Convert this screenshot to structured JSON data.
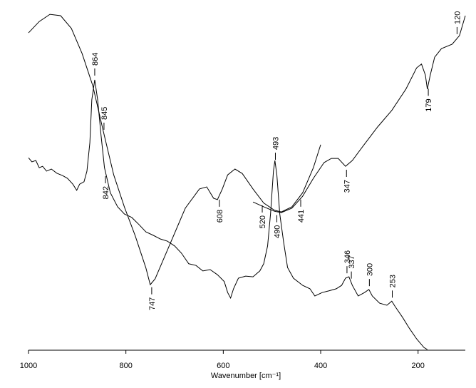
{
  "chart_data": {
    "type": "line",
    "x_label": "Wavenumber [cm⁻¹]",
    "xlim": [
      1000,
      103
    ],
    "xticks": [
      1000,
      800,
      600,
      400,
      200
    ],
    "ylim": [
      0,
      100
    ],
    "series": [
      {
        "color": "#000000",
        "x": [
          1000,
          978,
          956,
          934,
          912,
          890,
          868,
          846,
          825,
          803,
          781,
          759,
          750,
          740,
          715,
          678,
          649,
          634,
          620,
          612,
          602,
          591,
          576,
          561,
          539,
          517,
          495,
          481,
          459,
          437,
          415,
          400
        ],
        "values": [
          92.5,
          95.8,
          97.9,
          97.5,
          93.8,
          86.5,
          77.1,
          63.6,
          51.1,
          41.7,
          33.4,
          24.0,
          19.1,
          20.8,
          29.1,
          41.4,
          47.0,
          47.6,
          44.3,
          43.9,
          47.0,
          51.1,
          52.8,
          51.5,
          47.0,
          42.9,
          40.8,
          40.3,
          41.8,
          45.9,
          53.2,
          59.9
        ]
      },
      {
        "color": "#000000",
        "x": [
          1000,
          993,
          985,
          978,
          971,
          963,
          953,
          942,
          930,
          920,
          909,
          901,
          895,
          886,
          880,
          874,
          870,
          864,
          858,
          851,
          844,
          832,
          817,
          803,
          788,
          773,
          759,
          744,
          729,
          715,
          700,
          686,
          671,
          656,
          642,
          627,
          612,
          598,
          591,
          585,
          579,
          569,
          554,
          539,
          525,
          517,
          509,
          503,
          497,
          494,
          490,
          484,
          476,
          468,
          456,
          437,
          422,
          412,
          397,
          383,
          368,
          357,
          349,
          342,
          335,
          323,
          310,
          301,
          294,
          279,
          264,
          254,
          247,
          232,
          218,
          203,
          188,
          181
        ],
        "values": [
          56.1,
          54.9,
          55.3,
          53.2,
          53.6,
          52.2,
          52.8,
          51.6,
          50.9,
          50.1,
          48.4,
          46.6,
          48.4,
          49.1,
          52.2,
          60.5,
          73.0,
          78.8,
          73.0,
          62.6,
          53.2,
          45.9,
          41.8,
          39.7,
          38.7,
          36.6,
          34.5,
          33.5,
          32.4,
          31.8,
          30.4,
          28.3,
          25.2,
          24.7,
          23.1,
          23.5,
          22.0,
          20.0,
          16.8,
          15.2,
          17.9,
          21.0,
          21.6,
          21.4,
          23.1,
          25.2,
          30.4,
          39.7,
          52.2,
          55.3,
          51.1,
          39.7,
          31.4,
          24.1,
          21.0,
          18.9,
          17.9,
          15.8,
          16.8,
          17.3,
          17.9,
          18.9,
          21.0,
          21.4,
          18.9,
          15.8,
          16.8,
          17.7,
          15.8,
          13.7,
          13.1,
          14.3,
          12.7,
          9.6,
          6.4,
          3.3,
          0.8,
          0.2
        ]
      },
      {
        "color": "#000000",
        "x": [
          539,
          517,
          495,
          481,
          459,
          437,
          415,
          393,
          378,
          364,
          349,
          335,
          313,
          283,
          254,
          225,
          203,
          193,
          185,
          181,
          175,
          166,
          152,
          130,
          115,
          103
        ],
        "values": [
          43.2,
          41.8,
          40.5,
          40.1,
          41.4,
          44.9,
          50.1,
          54.7,
          55.9,
          55.9,
          53.6,
          55.3,
          59.5,
          65.1,
          69.9,
          76.1,
          82.3,
          83.4,
          80.2,
          76.1,
          80.2,
          85.4,
          87.9,
          89.2,
          91.7,
          97.5
        ]
      }
    ],
    "annotations": [
      {
        "x": 864,
        "series": 1,
        "position": "above"
      },
      {
        "x": 845,
        "series": 0,
        "position": "above"
      },
      {
        "x": 842,
        "series": 1,
        "position": "below"
      },
      {
        "x": 747,
        "series": 0,
        "position": "below"
      },
      {
        "x": 608,
        "series": 0,
        "position": "below"
      },
      {
        "x": 520,
        "series": 0,
        "position": "below"
      },
      {
        "x": 493,
        "series": 1,
        "position": "above"
      },
      {
        "x": 490,
        "series": 0,
        "position": "below"
      },
      {
        "x": 441,
        "series": 0,
        "position": "below"
      },
      {
        "x": 347,
        "series": 2,
        "position": "below"
      },
      {
        "x": 346,
        "series": 1,
        "position": "above"
      },
      {
        "x": 337,
        "series": 1,
        "position": "above"
      },
      {
        "x": 300,
        "series": 1,
        "position": "above"
      },
      {
        "x": 253,
        "series": 1,
        "position": "above"
      },
      {
        "x": 179,
        "series": 2,
        "position": "below"
      },
      {
        "x": 120,
        "series": 2,
        "position": "above"
      }
    ]
  }
}
